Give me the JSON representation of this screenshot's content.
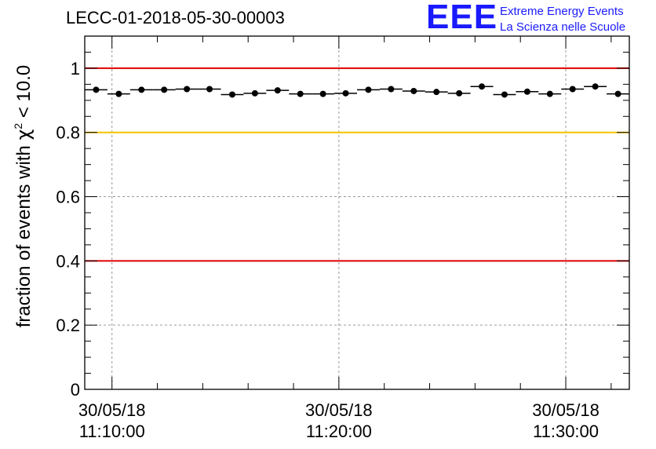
{
  "header": {
    "title": "LECC-01-2018-05-30-00003",
    "logo_mark": "EEE",
    "logo_line1": "Extreme Energy Events",
    "logo_line2": "La Scienza nelle Scuole"
  },
  "chart_data": {
    "type": "scatter",
    "title": "LECC-01-2018-05-30-00003",
    "ylabel_prefix": "fraction of events with ",
    "ylabel_symbol": "χ",
    "ylabel_exp": "2",
    "ylabel_suffix": " < 10.0",
    "xlabel": "",
    "ylim": [
      0,
      1.1
    ],
    "xlim_minutes": [
      8.8,
      32.8
    ],
    "x_ticks": [
      {
        "minute": 10,
        "date": "30/05/18",
        "time": "11:10:00"
      },
      {
        "minute": 20,
        "date": "30/05/18",
        "time": "11:20:00"
      },
      {
        "minute": 30,
        "date": "30/05/18",
        "time": "11:30:00"
      }
    ],
    "y_ticks": [
      0,
      0.2,
      0.4,
      0.6,
      0.8,
      1
    ],
    "y_tick_labels": [
      "0",
      "0.2",
      "0.4",
      "0.6",
      "0.8",
      "1"
    ],
    "reference_lines": [
      {
        "y": 1.0,
        "color": "#e00000"
      },
      {
        "y": 0.8,
        "color": "#f5c400"
      },
      {
        "y": 0.4,
        "color": "#e00000"
      }
    ],
    "bin_width_minutes": 1,
    "x_minutes": [
      8.8,
      9.8,
      10.8,
      11.8,
      12.8,
      13.8,
      14.8,
      15.8,
      16.8,
      17.8,
      18.8,
      19.8,
      20.8,
      21.8,
      22.8,
      23.8,
      24.8,
      25.8,
      26.8,
      27.8,
      28.8,
      29.8,
      30.8,
      31.8
    ],
    "values": [
      0.933,
      0.92,
      0.933,
      0.933,
      0.935,
      0.935,
      0.918,
      0.922,
      0.931,
      0.92,
      0.92,
      0.922,
      0.933,
      0.935,
      0.929,
      0.926,
      0.922,
      0.943,
      0.918,
      0.927,
      0.92,
      0.935,
      0.943,
      0.92
    ],
    "grid": true,
    "marker_color": "#000000"
  }
}
